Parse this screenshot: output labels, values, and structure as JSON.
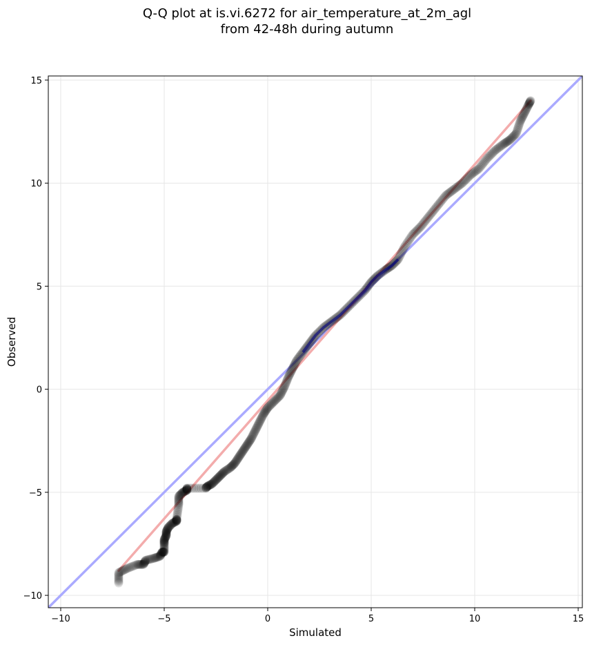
{
  "chart_data": {
    "type": "scatter",
    "title_lines": [
      "Q-Q plot at is.vi.6272 for air_temperature_at_2m_agl",
      "from 42-48h during autumn"
    ],
    "xlabel": "Simulated",
    "ylabel": "Observed",
    "xlim": [
      -10.6,
      15.2
    ],
    "ylim": [
      -10.6,
      15.2
    ],
    "xticks": [
      -10,
      -5,
      0,
      5,
      10,
      15
    ],
    "yticks": [
      -10,
      -5,
      0,
      5,
      10,
      15
    ],
    "xtick_labels": [
      "−10",
      "−5",
      "0",
      "5",
      "10",
      "15"
    ],
    "ytick_labels": [
      "−10",
      "−5",
      "0",
      "5",
      "10",
      "15"
    ],
    "grid": true,
    "reference_line": {
      "name": "1:1",
      "color": "#aaaaff",
      "from": [
        -10.6,
        -10.6
      ],
      "to": [
        15.2,
        15.2
      ]
    },
    "fit_line": {
      "color": "#f2a3a3",
      "from": [
        -7.2,
        -8.8
      ],
      "to": [
        12.7,
        14.0
      ]
    },
    "inner_band_color": "#000080",
    "inner_band_range": [
      1.5,
      6.5
    ],
    "points_color": "#000000",
    "quantile_points": [
      [
        -7.2,
        -9.4
      ],
      [
        -7.2,
        -8.9
      ],
      [
        -6.8,
        -8.7
      ],
      [
        -6.3,
        -8.5
      ],
      [
        -6.0,
        -8.5
      ],
      [
        -5.9,
        -8.3
      ],
      [
        -5.5,
        -8.2
      ],
      [
        -5.2,
        -8.1
      ],
      [
        -5.1,
        -7.9
      ],
      [
        -5.0,
        -7.9
      ],
      [
        -5.0,
        -7.5
      ],
      [
        -5.0,
        -7.3
      ],
      [
        -4.9,
        -7.1
      ],
      [
        -4.9,
        -6.9
      ],
      [
        -4.8,
        -6.7
      ],
      [
        -4.6,
        -6.5
      ],
      [
        -4.4,
        -6.4
      ],
      [
        -4.4,
        -6.3
      ],
      [
        -4.3,
        -5.6
      ],
      [
        -4.3,
        -5.2
      ],
      [
        -4.1,
        -5.0
      ],
      [
        -3.9,
        -4.9
      ],
      [
        -3.9,
        -4.8
      ],
      [
        -3.0,
        -4.8
      ],
      [
        -2.9,
        -4.7
      ],
      [
        -2.7,
        -4.6
      ],
      [
        -2.5,
        -4.4
      ],
      [
        -2.3,
        -4.2
      ],
      [
        -2.1,
        -4.0
      ],
      [
        -1.8,
        -3.8
      ],
      [
        -1.6,
        -3.6
      ],
      [
        -1.4,
        -3.3
      ],
      [
        -1.2,
        -3.0
      ],
      [
        -1.0,
        -2.7
      ],
      [
        -0.8,
        -2.4
      ],
      [
        -0.6,
        -2.0
      ],
      [
        -0.4,
        -1.6
      ],
      [
        -0.2,
        -1.2
      ],
      [
        0.0,
        -0.9
      ],
      [
        0.3,
        -0.6
      ],
      [
        0.6,
        -0.3
      ],
      [
        0.8,
        0.1
      ],
      [
        1.0,
        0.6
      ],
      [
        1.2,
        1.0
      ],
      [
        1.4,
        1.4
      ],
      [
        1.7,
        1.8
      ],
      [
        2.0,
        2.2
      ],
      [
        2.3,
        2.6
      ],
      [
        2.7,
        3.0
      ],
      [
        3.1,
        3.3
      ],
      [
        3.5,
        3.6
      ],
      [
        3.9,
        4.0
      ],
      [
        4.3,
        4.4
      ],
      [
        4.7,
        4.8
      ],
      [
        5.0,
        5.2
      ],
      [
        5.3,
        5.5
      ],
      [
        5.7,
        5.8
      ],
      [
        6.0,
        6.0
      ],
      [
        6.3,
        6.3
      ],
      [
        6.6,
        6.9
      ],
      [
        7.0,
        7.5
      ],
      [
        7.4,
        7.9
      ],
      [
        7.8,
        8.4
      ],
      [
        8.2,
        8.9
      ],
      [
        8.6,
        9.4
      ],
      [
        9.0,
        9.7
      ],
      [
        9.4,
        10.0
      ],
      [
        9.8,
        10.4
      ],
      [
        10.2,
        10.7
      ],
      [
        10.6,
        11.2
      ],
      [
        11.0,
        11.6
      ],
      [
        11.4,
        11.9
      ],
      [
        11.7,
        12.1
      ],
      [
        12.0,
        12.4
      ],
      [
        12.2,
        13.0
      ],
      [
        12.4,
        13.4
      ],
      [
        12.6,
        13.8
      ],
      [
        12.7,
        14.0
      ]
    ]
  }
}
